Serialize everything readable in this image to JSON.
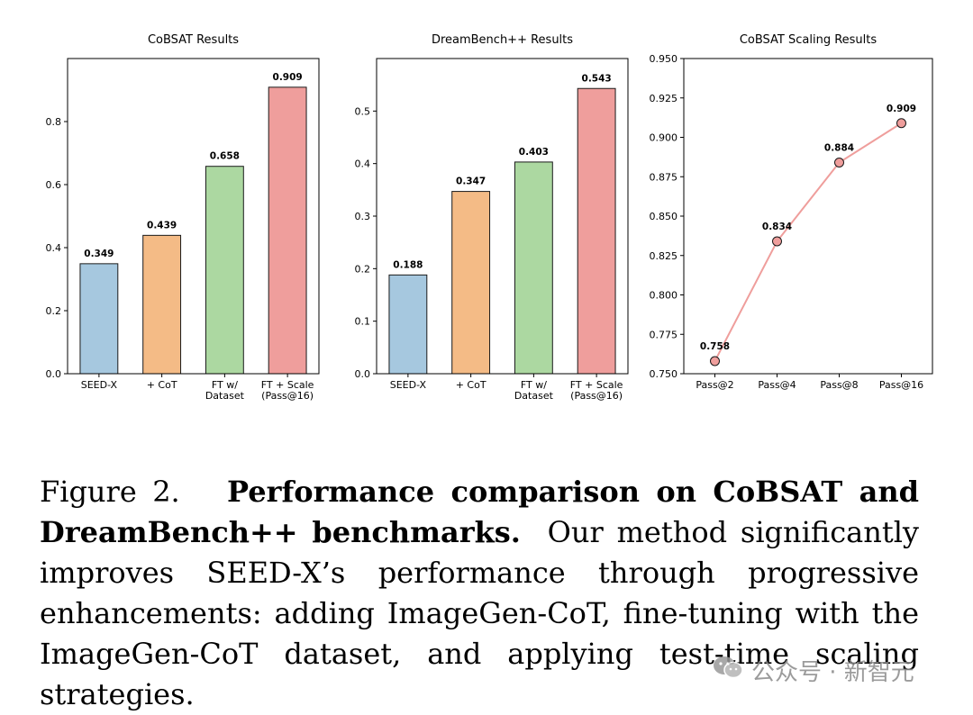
{
  "chart_data": [
    {
      "type": "bar",
      "title": "CoBSAT Results",
      "categories": [
        "SEED-X",
        "+ CoT",
        "FT w/\nDataset",
        "FT + Scale\n(Pass@16)"
      ],
      "values": [
        0.349,
        0.439,
        0.658,
        0.909
      ],
      "value_labels": [
        "0.349",
        "0.439",
        "0.658",
        "0.909"
      ],
      "ylim": [
        0,
        1.0
      ],
      "yticks": [
        0.0,
        0.2,
        0.4,
        0.6,
        0.8
      ],
      "ytick_labels": [
        "0.0",
        "0.2",
        "0.4",
        "0.6",
        "0.8"
      ],
      "colors": [
        "#a6c8df",
        "#f4bb86",
        "#acd8a1",
        "#ef9e9c"
      ],
      "grid": false
    },
    {
      "type": "bar",
      "title": "DreamBench++ Results",
      "categories": [
        "SEED-X",
        "+ CoT",
        "FT w/\nDataset",
        "FT + Scale\n(Pass@16)"
      ],
      "values": [
        0.188,
        0.347,
        0.403,
        0.543
      ],
      "value_labels": [
        "0.188",
        "0.347",
        "0.403",
        "0.543"
      ],
      "ylim": [
        0,
        0.6
      ],
      "yticks": [
        0.0,
        0.1,
        0.2,
        0.3,
        0.4,
        0.5
      ],
      "ytick_labels": [
        "0.0",
        "0.1",
        "0.2",
        "0.3",
        "0.4",
        "0.5"
      ],
      "colors": [
        "#a6c8df",
        "#f4bb86",
        "#acd8a1",
        "#ef9e9c"
      ],
      "grid": false
    },
    {
      "type": "line",
      "title": "CoBSAT Scaling Results",
      "categories": [
        "Pass@2",
        "Pass@4",
        "Pass@8",
        "Pass@16"
      ],
      "values": [
        0.758,
        0.834,
        0.884,
        0.909
      ],
      "value_labels": [
        "0.758",
        "0.834",
        "0.884",
        "0.909"
      ],
      "ylim": [
        0.75,
        0.95
      ],
      "yticks": [
        0.75,
        0.775,
        0.8,
        0.825,
        0.85,
        0.875,
        0.9,
        0.925,
        0.95
      ],
      "ytick_labels": [
        "0.750",
        "0.775",
        "0.800",
        "0.825",
        "0.850",
        "0.875",
        "0.900",
        "0.925",
        "0.950"
      ],
      "line_color": "#ef9e9c",
      "marker_color": "#ef9e9c",
      "grid": false
    }
  ],
  "caption": {
    "figure_label": "Figure 2.",
    "bold_text": "Performance comparison on CoBSAT and DreamBench++ benchmarks.",
    "body_text": "Our method significantly improves SEED-X’s performance through progressive enhancements: adding ImageGen-CoT, fine-tuning with the ImageGen-CoT dataset, and applying test-time scaling strategies."
  },
  "watermark": {
    "icon": "wechat-icon",
    "text": "公众号 · 新智元"
  }
}
